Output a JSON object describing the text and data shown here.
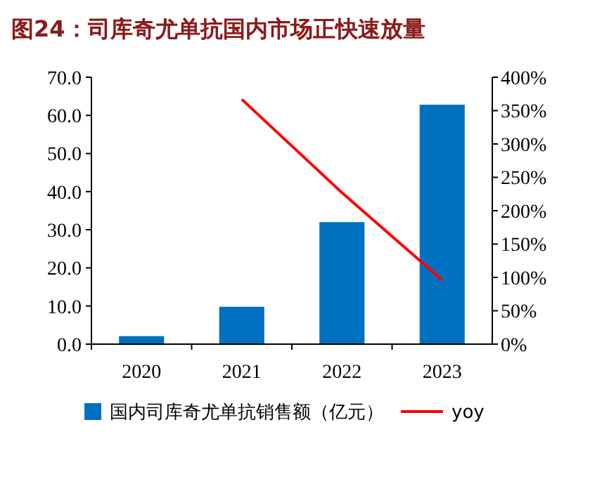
{
  "chart_data": {
    "type": "bar",
    "title": "图24：司库奇尤单抗国内市场正快速放量",
    "categories": [
      "2020",
      "2021",
      "2022",
      "2023"
    ],
    "series": [
      {
        "name": "国内司库奇尤单抗销售额（亿元）",
        "color": "#0070c0",
        "values": [
          2.1,
          9.8,
          32.0,
          62.8
        ]
      },
      {
        "name": "yoy",
        "type": "line",
        "axis": "y2",
        "color": "#ff0000",
        "values": [
          null,
          367,
          227,
          96
        ]
      }
    ],
    "ylim": [
      0,
      70
    ],
    "yticks": [
      {
        "value": 0,
        "label": "0.0"
      },
      {
        "value": 10,
        "label": "10.0"
      },
      {
        "value": 20,
        "label": "20.0"
      },
      {
        "value": 30,
        "label": "30.0"
      },
      {
        "value": 40,
        "label": "40.0"
      },
      {
        "value": 50,
        "label": "50.0"
      },
      {
        "value": 60,
        "label": "60.0"
      },
      {
        "value": 70,
        "label": "70.0"
      }
    ],
    "y2lim": [
      0,
      400
    ],
    "y2ticks": [
      {
        "value": 0,
        "label": "0%"
      },
      {
        "value": 50,
        "label": "50%"
      },
      {
        "value": 100,
        "label": "100%"
      },
      {
        "value": 150,
        "label": "150%"
      },
      {
        "value": 200,
        "label": "200%"
      },
      {
        "value": 250,
        "label": "250%"
      },
      {
        "value": 300,
        "label": "300%"
      },
      {
        "value": 350,
        "label": "350%"
      },
      {
        "value": 400,
        "label": "400%"
      }
    ],
    "legend": "bottom",
    "grid": false
  }
}
